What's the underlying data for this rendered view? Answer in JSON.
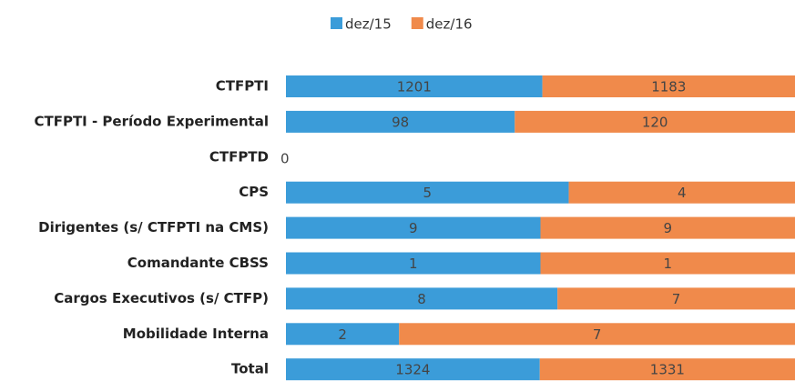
{
  "chart_data": {
    "type": "bar",
    "orientation": "horizontal",
    "stacking": "percent",
    "categories": [
      "CTFPTI",
      "CTFPTI - Período Experimental",
      "CTFPTD",
      "CPS",
      "Dirigentes (s/ CTFPTI na CMS)",
      "Comandante CBSS",
      "Cargos Executivos (s/ CTFP)",
      "Mobilidade Interna",
      "Total"
    ],
    "series": [
      {
        "name": "dez/15",
        "color": "#3b9cd9",
        "values": [
          1201,
          98,
          0,
          5,
          9,
          1,
          8,
          2,
          1324
        ]
      },
      {
        "name": "dez/16",
        "color": "#f08a4b",
        "values": [
          1183,
          120,
          0,
          4,
          9,
          1,
          7,
          7,
          1331
        ]
      }
    ],
    "legend": "top"
  }
}
